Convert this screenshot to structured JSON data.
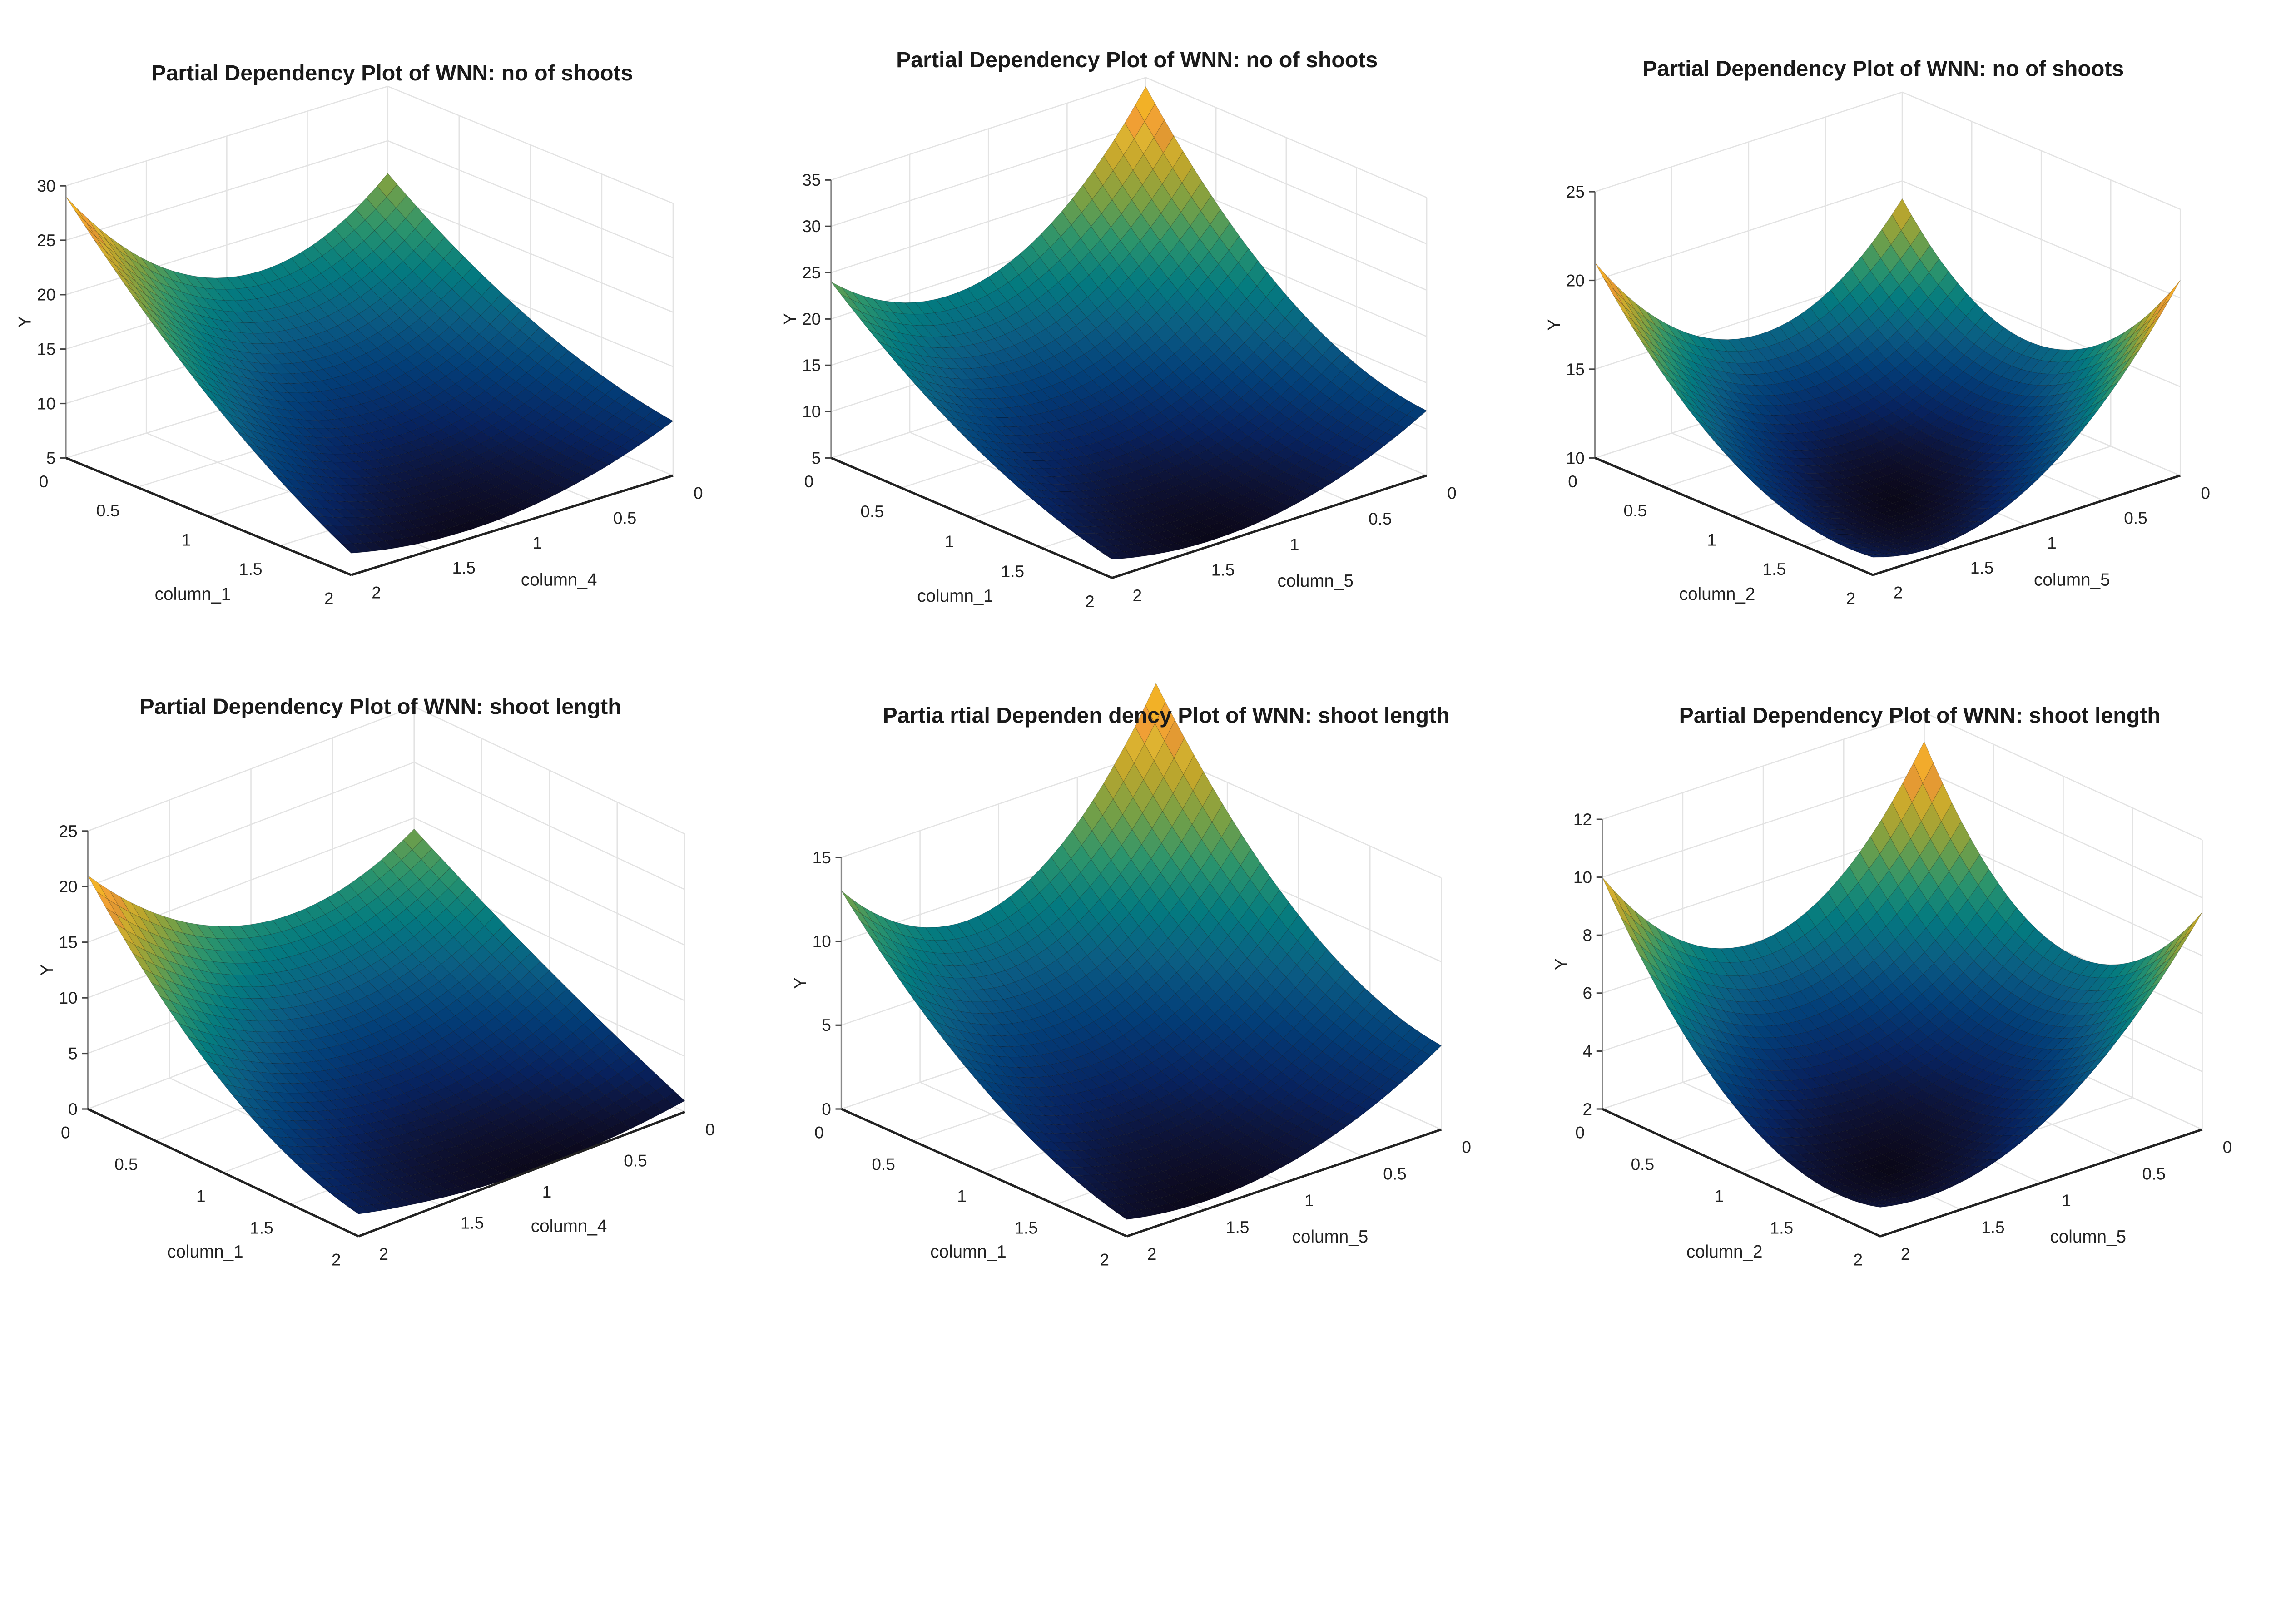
{
  "chart_data": [
    {
      "type": "surface",
      "title": "Partial Dependency Plot of WNN: no of shoots",
      "xlabel": "column_1",
      "ylabel": "column_4",
      "zlabel": "Y",
      "zlim": [
        5,
        30
      ],
      "zticks": [
        "5",
        "10",
        "15",
        "20",
        "25",
        "30"
      ],
      "xticks": [
        "0",
        "0.5",
        "1",
        "1.5",
        "2"
      ],
      "yticks": [
        "0",
        "0.5",
        "1",
        "1.5",
        "2"
      ],
      "z_grid_at_0_1_2": [
        [
          22,
          17,
          29
        ],
        [
          14,
          9,
          16
        ],
        [
          10,
          6,
          7
        ]
      ]
    },
    {
      "type": "surface",
      "title": "Partial Dependency Plot of WNN: no of shoots",
      "xlabel": "column_1",
      "ylabel": "column_5",
      "zlabel": "Y",
      "zlim": [
        5,
        35
      ],
      "zticks": [
        "5",
        "10",
        "15",
        "20",
        "25",
        "30",
        "35"
      ],
      "xticks": [
        "0",
        "0.5",
        "1",
        "1.5",
        "2"
      ],
      "yticks": [
        "0",
        "0.5",
        "1",
        "1.5",
        "2"
      ],
      "z_grid_at_0_1_2": [
        [
          34,
          19,
          24
        ],
        [
          18,
          9,
          13
        ],
        [
          12,
          6,
          7
        ]
      ]
    },
    {
      "type": "surface",
      "title": "Partial Dependency Plot of WNN: no of shoots",
      "xlabel": "column_2",
      "ylabel": "column_5",
      "zlabel": "Y",
      "zlim": [
        10,
        25
      ],
      "zticks": [
        "10",
        "15",
        "20",
        "25"
      ],
      "xticks": [
        "0",
        "0.5",
        "1",
        "1.5",
        "2"
      ],
      "yticks": [
        "0",
        "0.5",
        "1",
        "1.5",
        "2"
      ],
      "z_grid_at_0_1_2": [
        [
          19,
          14,
          21
        ],
        [
          14,
          10,
          13
        ],
        [
          21,
          12,
          11
        ]
      ]
    },
    {
      "type": "surface",
      "title": "Partial Dependency Plot of WNN: shoot length",
      "xlabel": "column_1",
      "ylabel": "column_4",
      "zlabel": "Y",
      "zlim": [
        0,
        25
      ],
      "zticks": [
        "0",
        "5",
        "10",
        "15",
        "20",
        "25"
      ],
      "xticks": [
        "0",
        "0.5",
        "1",
        "1.5",
        "2"
      ],
      "yticks": [
        "0",
        "0.5",
        "1",
        "1.5",
        "2"
      ],
      "z_grid_at_0_1_2": [
        [
          14,
          11,
          21
        ],
        [
          7,
          3,
          8
        ],
        [
          1,
          0,
          2
        ]
      ]
    },
    {
      "type": "surface",
      "title": "Partia rtial Dependen dency Plot of WNN: shoot length",
      "xlabel": "column_1",
      "ylabel": "column_5",
      "zlabel": "Y",
      "zlim": [
        0,
        15
      ],
      "zticks": [
        "0",
        "5",
        "10",
        "15"
      ],
      "xticks": [
        "0",
        "0.5",
        "1",
        "1.5",
        "2"
      ],
      "yticks": [
        "0",
        "0.5",
        "1",
        "1.5",
        "2"
      ],
      "z_grid_at_0_1_2": [
        [
          19,
          9,
          13
        ],
        [
          9,
          3,
          5
        ],
        [
          5,
          1,
          1
        ]
      ]
    },
    {
      "type": "surface",
      "title": "Partial Dependency Plot of WNN: shoot length",
      "xlabel": "column_2",
      "ylabel": "column_5",
      "zlabel": "Y",
      "zlim": [
        2,
        12
      ],
      "zticks": [
        "2",
        "4",
        "6",
        "8",
        "10",
        "12"
      ],
      "xticks": [
        "0",
        "0.5",
        "1",
        "1.5",
        "2"
      ],
      "yticks": [
        "0",
        "0.5",
        "1",
        "1.5",
        "2"
      ],
      "z_grid_at_0_1_2": [
        [
          11,
          6,
          10
        ],
        [
          6,
          3,
          4
        ],
        [
          9.5,
          4,
          3
        ]
      ]
    }
  ]
}
